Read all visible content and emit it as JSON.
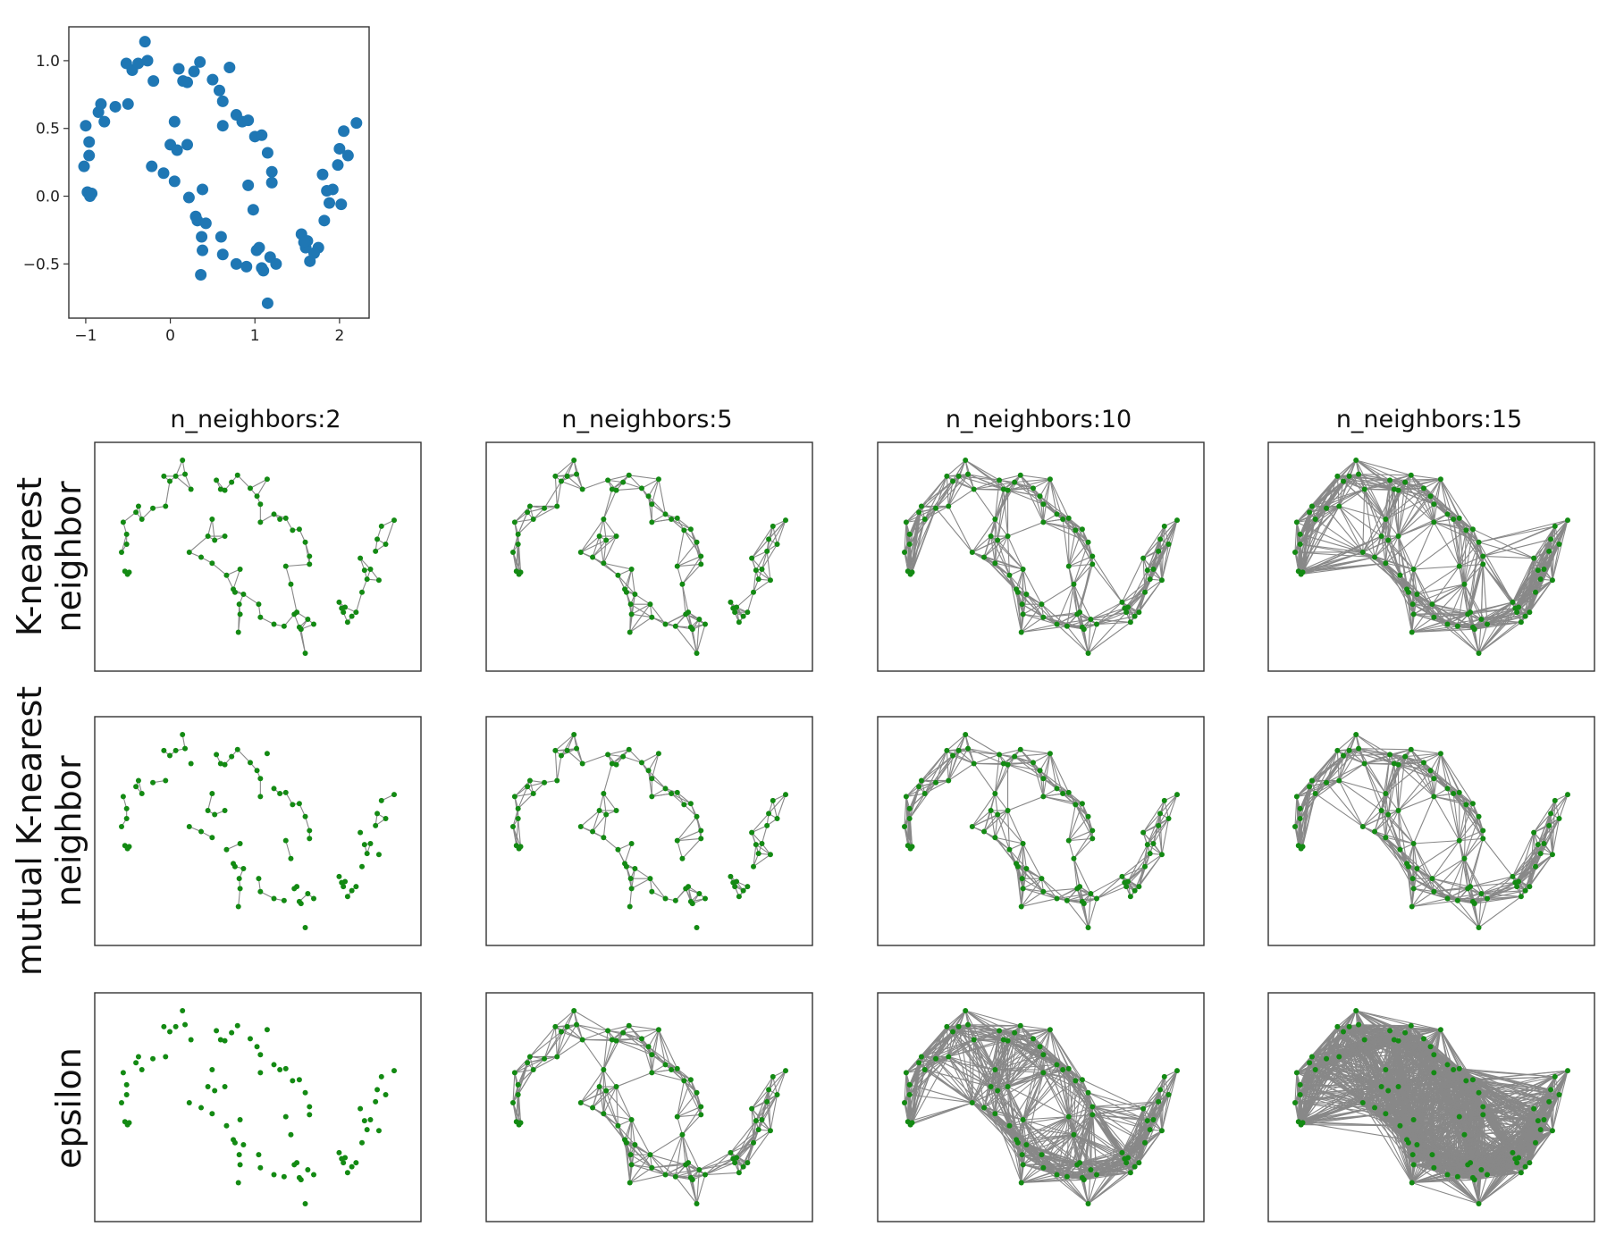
{
  "colors": {
    "scatter": "#1f77b4",
    "node": "#138a13",
    "edge": "#888888",
    "frame": "#333333"
  },
  "chart_data": [
    {
      "id": "moons",
      "type": "scatter",
      "title": "",
      "xlabel": "",
      "ylabel": "",
      "xlim": [
        -1.2,
        2.35
      ],
      "ylim": [
        -0.9,
        1.25
      ],
      "xticks": [
        "−1",
        "0",
        "1",
        "2"
      ],
      "yticks": [
        "−0.5",
        "0.0",
        "0.5",
        "1.0"
      ],
      "x": [
        -1.0,
        -0.96,
        -0.96,
        -1.02,
        -0.98,
        -0.95,
        -0.93,
        -0.85,
        -0.82,
        -0.78,
        -0.65,
        -0.5,
        -0.52,
        -0.45,
        -0.38,
        -0.3,
        -0.27,
        -0.2,
        0.05,
        0.2,
        0.35,
        0.28,
        0.1,
        0.15,
        0.5,
        0.58,
        0.62,
        0.7,
        0.62,
        0.78,
        0.85,
        0.92,
        1.0,
        1.08,
        1.15,
        1.2,
        1.2,
        1.55,
        1.6,
        1.62,
        1.65,
        1.75,
        1.82,
        1.88,
        1.92,
        2.0,
        2.02,
        2.05,
        2.1,
        2.2,
        -0.22,
        -0.08,
        0.0,
        0.05,
        0.08,
        0.2,
        0.22,
        0.3,
        0.32,
        0.38,
        0.42,
        0.37,
        0.38,
        0.6,
        0.62,
        0.78,
        0.9,
        0.92,
        0.98,
        1.02,
        1.08,
        1.1,
        1.18,
        1.25,
        1.05,
        0.36,
        1.15,
        1.58,
        1.7,
        1.8,
        1.85,
        1.98
      ],
      "y": [
        0.52,
        0.4,
        0.3,
        0.22,
        0.03,
        0.0,
        0.02,
        0.62,
        0.68,
        0.55,
        0.66,
        0.68,
        0.98,
        0.93,
        0.98,
        1.14,
        1.0,
        0.85,
        0.55,
        0.84,
        0.99,
        0.92,
        0.94,
        0.85,
        0.86,
        0.78,
        0.7,
        0.95,
        0.52,
        0.6,
        0.55,
        0.56,
        0.44,
        0.45,
        0.32,
        0.18,
        0.1,
        -0.28,
        -0.38,
        -0.33,
        -0.48,
        -0.38,
        -0.18,
        -0.05,
        0.05,
        0.35,
        -0.06,
        0.48,
        0.3,
        0.54,
        0.22,
        0.17,
        0.38,
        0.11,
        0.34,
        0.38,
        -0.01,
        -0.15,
        -0.18,
        0.05,
        -0.2,
        -0.3,
        -0.4,
        -0.3,
        -0.43,
        -0.5,
        -0.52,
        0.08,
        -0.1,
        -0.4,
        -0.53,
        -0.55,
        -0.45,
        -0.5,
        -0.38,
        -0.58,
        -0.79,
        -0.34,
        -0.42,
        0.16,
        0.04,
        0.23
      ]
    },
    {
      "id": "graph-grid",
      "type": "network-grid",
      "column_titles": [
        "n_neighbors:2",
        "n_neighbors:5",
        "n_neighbors:10",
        "n_neighbors:15"
      ],
      "row_labels": [
        [
          "K-nearest",
          "neighbor"
        ],
        [
          "mutual K-nearest",
          "neighbor"
        ],
        [
          "epsilon",
          ""
        ]
      ],
      "methods": [
        "knn",
        "mutual-knn",
        "epsilon"
      ],
      "n_neighbors": [
        2,
        5,
        10,
        15
      ],
      "epsilon_radius_factors": [
        0.0,
        0.45,
        0.8,
        1.25
      ],
      "node_x": [
        -1.0,
        -0.96,
        -0.96,
        -1.02,
        -0.98,
        -0.95,
        -0.93,
        -0.85,
        -0.82,
        -0.78,
        -0.65,
        -0.5,
        -0.52,
        -0.45,
        -0.38,
        -0.3,
        -0.27,
        -0.2,
        0.05,
        0.2,
        0.35,
        0.28,
        0.1,
        0.15,
        0.5,
        0.58,
        0.62,
        0.7,
        0.62,
        0.78,
        0.85,
        0.92,
        1.0,
        1.08,
        1.15,
        1.2,
        1.2,
        1.55,
        1.6,
        1.62,
        1.65,
        1.75,
        1.82,
        1.88,
        1.92,
        2.0,
        2.02,
        2.05,
        2.1,
        2.2,
        -0.22,
        -0.08,
        0.0,
        0.05,
        0.08,
        0.2,
        0.22,
        0.3,
        0.32,
        0.38,
        0.42,
        0.37,
        0.38,
        0.6,
        0.62,
        0.78,
        0.9,
        0.92,
        0.98,
        1.02,
        1.08,
        1.1,
        1.18,
        1.25,
        1.05,
        0.36,
        1.15,
        1.58,
        1.7,
        1.8,
        1.85,
        1.98
      ],
      "node_y": [
        0.52,
        0.4,
        0.3,
        0.22,
        0.03,
        0.0,
        0.02,
        0.62,
        0.68,
        0.55,
        0.66,
        0.68,
        0.98,
        0.93,
        0.98,
        1.14,
        1.0,
        0.85,
        0.55,
        0.84,
        0.99,
        0.92,
        0.94,
        0.85,
        0.86,
        0.78,
        0.7,
        0.95,
        0.52,
        0.6,
        0.55,
        0.56,
        0.44,
        0.45,
        0.32,
        0.18,
        0.1,
        -0.28,
        -0.38,
        -0.33,
        -0.48,
        -0.38,
        -0.18,
        -0.05,
        0.05,
        0.35,
        -0.06,
        0.48,
        0.3,
        0.54,
        0.22,
        0.17,
        0.38,
        0.11,
        0.34,
        0.38,
        -0.01,
        -0.15,
        -0.18,
        0.05,
        -0.2,
        -0.3,
        -0.4,
        -0.3,
        -0.43,
        -0.5,
        -0.52,
        0.08,
        -0.1,
        -0.4,
        -0.53,
        -0.55,
        -0.45,
        -0.5,
        -0.38,
        -0.58,
        -0.79,
        -0.34,
        -0.42,
        0.16,
        0.04,
        0.23
      ]
    }
  ]
}
